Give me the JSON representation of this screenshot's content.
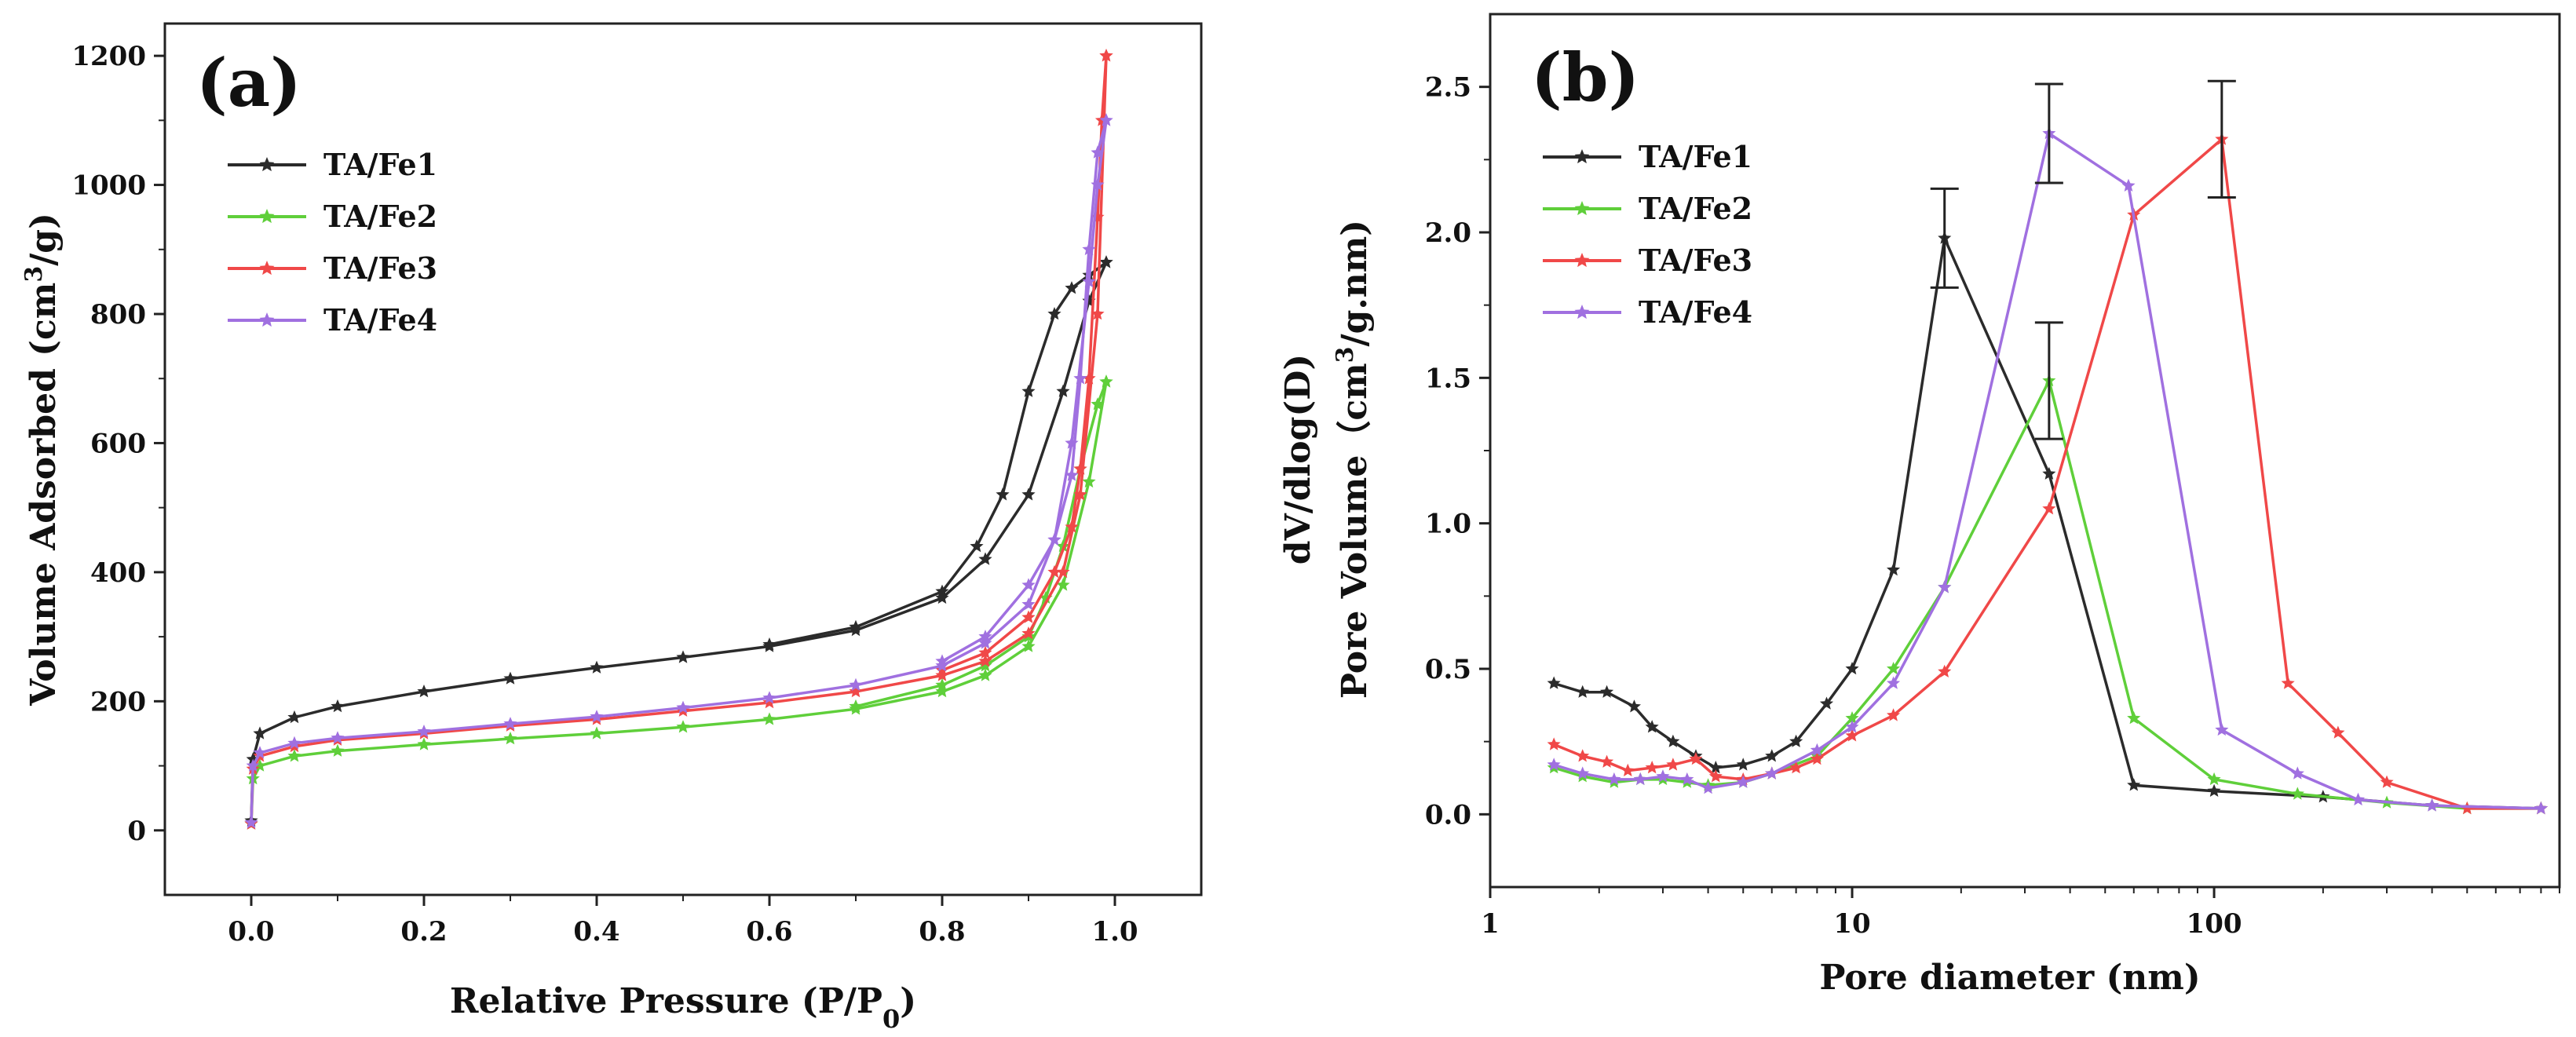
{
  "colors": {
    "TA/Fe1": "#2b2b2b",
    "TA/Fe2": "#5fcf3a",
    "TA/Fe3": "#f04848",
    "TA/Fe4": "#a070e0"
  },
  "chart_data": [
    {
      "type": "line",
      "panel_label": "(a)",
      "xlabel": "Relative Pressure (P/P0)",
      "ylabel": "Volume Adsorbed (cm3/g)",
      "xlim": [
        -0.1,
        1.1
      ],
      "ylim": [
        -100,
        1250
      ],
      "x_ticks": [
        0.0,
        0.2,
        0.4,
        0.6,
        0.8,
        1.0
      ],
      "x_tick_labels": [
        "0.0",
        "0.2",
        "0.4",
        "0.6",
        "0.8",
        "1.0"
      ],
      "y_ticks": [
        0,
        200,
        400,
        600,
        800,
        1000,
        1200
      ],
      "y_tick_labels": [
        "0",
        "200",
        "400",
        "600",
        "800",
        "1000",
        "1200"
      ],
      "legend": [
        "TA/Fe1",
        "TA/Fe2",
        "TA/Fe3",
        "TA/Fe4"
      ],
      "series": [
        {
          "name": "TA/Fe1",
          "adsorption": [
            [
              0.0,
              15
            ],
            [
              0.002,
              110
            ],
            [
              0.01,
              150
            ],
            [
              0.05,
              175
            ],
            [
              0.1,
              192
            ],
            [
              0.2,
              215
            ],
            [
              0.3,
              235
            ],
            [
              0.4,
              252
            ],
            [
              0.5,
              268
            ],
            [
              0.6,
              285
            ],
            [
              0.7,
              310
            ],
            [
              0.8,
              360
            ],
            [
              0.85,
              420
            ],
            [
              0.9,
              520
            ],
            [
              0.94,
              680
            ],
            [
              0.97,
              820
            ],
            [
              0.99,
              880
            ]
          ],
          "desorption": [
            [
              0.99,
              880
            ],
            [
              0.97,
              860
            ],
            [
              0.95,
              840
            ],
            [
              0.93,
              800
            ],
            [
              0.9,
              680
            ],
            [
              0.87,
              520
            ],
            [
              0.84,
              440
            ],
            [
              0.8,
              370
            ],
            [
              0.7,
              315
            ],
            [
              0.6,
              288
            ]
          ]
        },
        {
          "name": "TA/Fe2",
          "adsorption": [
            [
              0.0,
              10
            ],
            [
              0.002,
              80
            ],
            [
              0.01,
              100
            ],
            [
              0.05,
              115
            ],
            [
              0.1,
              123
            ],
            [
              0.2,
              133
            ],
            [
              0.3,
              142
            ],
            [
              0.4,
              150
            ],
            [
              0.5,
              160
            ],
            [
              0.6,
              172
            ],
            [
              0.7,
              188
            ],
            [
              0.8,
              215
            ],
            [
              0.85,
              240
            ],
            [
              0.9,
              285
            ],
            [
              0.94,
              380
            ],
            [
              0.97,
              540
            ],
            [
              0.99,
              695
            ]
          ],
          "desorption": [
            [
              0.99,
              695
            ],
            [
              0.98,
              660
            ],
            [
              0.96,
              560
            ],
            [
              0.94,
              440
            ],
            [
              0.92,
              360
            ],
            [
              0.9,
              300
            ],
            [
              0.85,
              255
            ],
            [
              0.8,
              225
            ],
            [
              0.7,
              192
            ]
          ]
        },
        {
          "name": "TA/Fe3",
          "adsorption": [
            [
              0.0,
              10
            ],
            [
              0.002,
              95
            ],
            [
              0.01,
              115
            ],
            [
              0.05,
              130
            ],
            [
              0.1,
              140
            ],
            [
              0.2,
              150
            ],
            [
              0.3,
              162
            ],
            [
              0.4,
              172
            ],
            [
              0.5,
              185
            ],
            [
              0.6,
              198
            ],
            [
              0.7,
              215
            ],
            [
              0.8,
              240
            ],
            [
              0.85,
              262
            ],
            [
              0.9,
              305
            ],
            [
              0.94,
              400
            ],
            [
              0.96,
              520
            ],
            [
              0.98,
              800
            ],
            [
              0.99,
              1200
            ]
          ],
          "desorption": [
            [
              0.99,
              1200
            ],
            [
              0.985,
              1100
            ],
            [
              0.98,
              950
            ],
            [
              0.97,
              700
            ],
            [
              0.96,
              560
            ],
            [
              0.95,
              470
            ],
            [
              0.93,
              400
            ],
            [
              0.9,
              330
            ],
            [
              0.85,
              275
            ],
            [
              0.8,
              248
            ]
          ]
        },
        {
          "name": "TA/Fe4",
          "adsorption": [
            [
              0.0,
              12
            ],
            [
              0.002,
              100
            ],
            [
              0.01,
              120
            ],
            [
              0.05,
              135
            ],
            [
              0.1,
              143
            ],
            [
              0.2,
              153
            ],
            [
              0.3,
              165
            ],
            [
              0.4,
              176
            ],
            [
              0.5,
              190
            ],
            [
              0.6,
              205
            ],
            [
              0.7,
              225
            ],
            [
              0.8,
              255
            ],
            [
              0.85,
              290
            ],
            [
              0.9,
              350
            ],
            [
              0.93,
              450
            ],
            [
              0.95,
              600
            ],
            [
              0.97,
              850
            ],
            [
              0.98,
              1000
            ],
            [
              0.99,
              1100
            ]
          ],
          "desorption": [
            [
              0.99,
              1100
            ],
            [
              0.98,
              1050
            ],
            [
              0.97,
              900
            ],
            [
              0.96,
              700
            ],
            [
              0.95,
              550
            ],
            [
              0.93,
              450
            ],
            [
              0.9,
              380
            ],
            [
              0.85,
              300
            ],
            [
              0.8,
              262
            ]
          ]
        }
      ]
    },
    {
      "type": "line",
      "panel_label": "(b)",
      "xlabel": "Pore diameter (nm)",
      "ylabel": "dV/dlog(D)",
      "ylabel2": "Pore Volume（cm3/g.nm)",
      "xscale": "log",
      "xlim": [
        1,
        900
      ],
      "ylim": [
        -0.25,
        2.75
      ],
      "x_ticks": [
        1,
        10,
        100
      ],
      "x_tick_labels": [
        "1",
        "10",
        "100"
      ],
      "y_ticks": [
        0.0,
        0.5,
        1.0,
        1.5,
        2.0,
        2.5
      ],
      "y_tick_labels": [
        "0.0",
        "0.5",
        "1.0",
        "1.5",
        "2.0",
        "2.5"
      ],
      "legend": [
        "TA/Fe1",
        "TA/Fe2",
        "TA/Fe3",
        "TA/Fe4"
      ],
      "series": [
        {
          "name": "TA/Fe1",
          "points": [
            [
              1.5,
              0.45
            ],
            [
              1.8,
              0.42
            ],
            [
              2.1,
              0.42
            ],
            [
              2.5,
              0.37
            ],
            [
              2.8,
              0.3
            ],
            [
              3.2,
              0.25
            ],
            [
              3.7,
              0.2
            ],
            [
              4.2,
              0.16
            ],
            [
              5.0,
              0.17
            ],
            [
              6.0,
              0.2
            ],
            [
              7.0,
              0.25
            ],
            [
              8.5,
              0.38
            ],
            [
              10.0,
              0.5
            ],
            [
              13.0,
              0.84
            ],
            [
              18.0,
              1.98
            ],
            [
              35.0,
              1.17
            ],
            [
              60.0,
              0.1
            ],
            [
              100.0,
              0.08
            ],
            [
              200.0,
              0.06
            ],
            [
              400.0,
              0.03
            ],
            [
              800.0,
              0.02
            ]
          ],
          "error_bar": {
            "x": 18.0,
            "y": 1.98,
            "err": 0.17
          }
        },
        {
          "name": "TA/Fe2",
          "points": [
            [
              1.5,
              0.16
            ],
            [
              1.8,
              0.13
            ],
            [
              2.2,
              0.11
            ],
            [
              2.6,
              0.12
            ],
            [
              3.0,
              0.12
            ],
            [
              3.5,
              0.11
            ],
            [
              4.0,
              0.1
            ],
            [
              5.0,
              0.11
            ],
            [
              6.0,
              0.14
            ],
            [
              8.0,
              0.2
            ],
            [
              10.0,
              0.33
            ],
            [
              13.0,
              0.5
            ],
            [
              18.0,
              0.78
            ],
            [
              35.0,
              1.49
            ],
            [
              60.0,
              0.33
            ],
            [
              100.0,
              0.12
            ],
            [
              170.0,
              0.07
            ],
            [
              300.0,
              0.04
            ],
            [
              500.0,
              0.02
            ],
            [
              800.0,
              0.02
            ]
          ],
          "error_bar": {
            "x": 35.0,
            "y": 1.49,
            "err": 0.2
          }
        },
        {
          "name": "TA/Fe3",
          "points": [
            [
              1.5,
              0.24
            ],
            [
              1.8,
              0.2
            ],
            [
              2.1,
              0.18
            ],
            [
              2.4,
              0.15
            ],
            [
              2.8,
              0.16
            ],
            [
              3.2,
              0.17
            ],
            [
              3.7,
              0.19
            ],
            [
              4.2,
              0.13
            ],
            [
              5.0,
              0.12
            ],
            [
              6.0,
              0.14
            ],
            [
              7.0,
              0.16
            ],
            [
              8.0,
              0.19
            ],
            [
              10.0,
              0.27
            ],
            [
              13.0,
              0.34
            ],
            [
              18.0,
              0.49
            ],
            [
              35.0,
              1.05
            ],
            [
              60.0,
              2.06
            ],
            [
              105.0,
              2.32
            ],
            [
              160.0,
              0.45
            ],
            [
              220.0,
              0.28
            ],
            [
              300.0,
              0.11
            ],
            [
              500.0,
              0.02
            ],
            [
              800.0,
              0.02
            ]
          ],
          "error_bar": {
            "x": 105.0,
            "y": 2.32,
            "err": 0.2
          }
        },
        {
          "name": "TA/Fe4",
          "points": [
            [
              1.5,
              0.17
            ],
            [
              1.8,
              0.14
            ],
            [
              2.2,
              0.12
            ],
            [
              2.6,
              0.12
            ],
            [
              3.0,
              0.13
            ],
            [
              3.5,
              0.12
            ],
            [
              4.0,
              0.09
            ],
            [
              5.0,
              0.11
            ],
            [
              6.0,
              0.14
            ],
            [
              8.0,
              0.22
            ],
            [
              10.0,
              0.3
            ],
            [
              13.0,
              0.45
            ],
            [
              18.0,
              0.78
            ],
            [
              35.0,
              2.34
            ],
            [
              58.0,
              2.16
            ],
            [
              105.0,
              0.29
            ],
            [
              170.0,
              0.14
            ],
            [
              250.0,
              0.05
            ],
            [
              400.0,
              0.03
            ],
            [
              800.0,
              0.02
            ]
          ],
          "error_bar": {
            "x": 35.0,
            "y": 2.34,
            "err": 0.17
          }
        }
      ]
    }
  ]
}
